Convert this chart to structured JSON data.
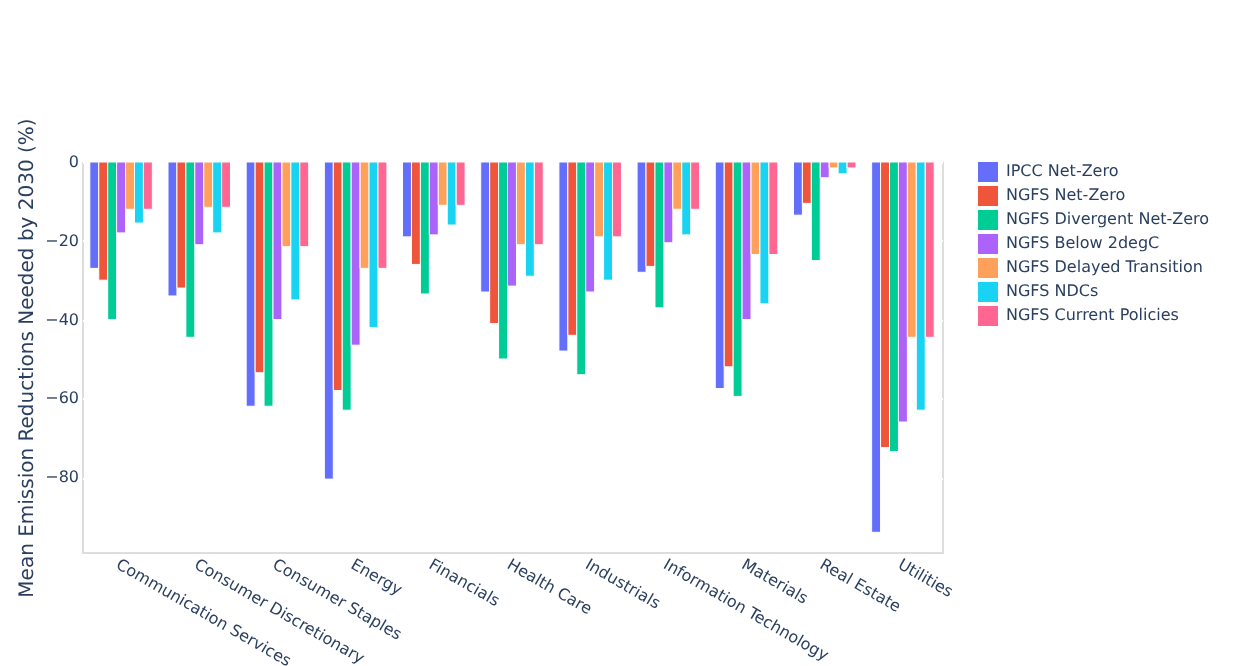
{
  "chart_data": {
    "type": "bar",
    "ylabel": "Mean Emission Reductions Needed by 2030 (%)",
    "categories": [
      "Communication Services",
      "Consumer Discretionary",
      "Consumer Staples",
      "Energy",
      "Financials",
      "Health Care",
      "Industrials",
      "Information Technology",
      "Materials",
      "Real Estate",
      "Utilities"
    ],
    "series": [
      {
        "name": "IPCC Net-Zero",
        "color": "#636efa",
        "values": [
          -27,
          -34,
          -62,
          -80.5,
          -19,
          -33,
          -48,
          -28,
          -57.5,
          -13.5,
          -94
        ]
      },
      {
        "name": "NGFS Net-Zero",
        "color": "#ef553b",
        "values": [
          -30,
          -32,
          -53.5,
          -58,
          -26,
          -41,
          -44,
          -26.5,
          -52,
          -10.5,
          -72.5
        ]
      },
      {
        "name": "NGFS Divergent Net-Zero",
        "color": "#00cc96",
        "values": [
          -40,
          -44.5,
          -62,
          -63,
          -33.5,
          -50,
          -54,
          -37,
          -59.5,
          -25,
          -73.5
        ]
      },
      {
        "name": "NGFS Below 2degC",
        "color": "#ab63fa",
        "values": [
          -18,
          -21,
          -40,
          -46.5,
          -18.5,
          -31.5,
          -33,
          -20.5,
          -40,
          -4,
          -66
        ]
      },
      {
        "name": "NGFS Delayed Transition",
        "color": "#ffa15a",
        "values": [
          -12,
          -11.5,
          -21.5,
          -27,
          -11,
          -21,
          -19,
          -12,
          -23.5,
          -1.5,
          -44.5
        ]
      },
      {
        "name": "NGFS NDCs",
        "color": "#19d3f3",
        "values": [
          -15.5,
          -18,
          -35,
          -42,
          -16,
          -29,
          -30,
          -18.5,
          -36,
          -3,
          -63
        ]
      },
      {
        "name": "NGFS Current Policies",
        "color": "#ff6692",
        "values": [
          -12,
          -11.5,
          -21.5,
          -27,
          -11,
          -21,
          -19,
          -12,
          -23.5,
          -1.5,
          -44.5
        ]
      }
    ],
    "ylim": [
      -99,
      0
    ],
    "yticks": [
      0,
      -20,
      -40,
      -60,
      -80
    ],
    "grid": "y",
    "legend": "top right"
  }
}
